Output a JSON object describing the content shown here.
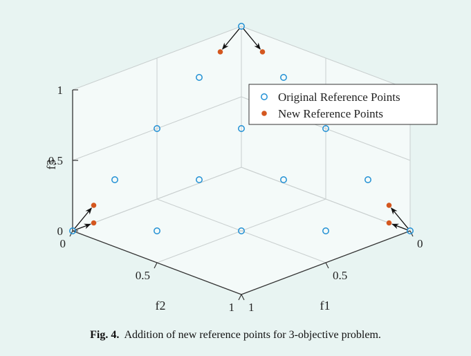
{
  "chart_data": {
    "type": "scatter",
    "projection": "3d",
    "grid": true,
    "legend_position": "top-right",
    "axes": {
      "f1": {
        "label": "f1",
        "range": [
          0,
          1
        ],
        "ticks": [
          "0",
          "0.5",
          "1"
        ]
      },
      "f2": {
        "label": "f2",
        "range": [
          0,
          1
        ],
        "ticks": [
          "0",
          "0.5",
          "1"
        ]
      },
      "f3": {
        "label": "f3",
        "range": [
          0,
          1
        ],
        "ticks": [
          "0",
          "0.5",
          "1"
        ]
      }
    },
    "series": [
      {
        "name": "Original Reference Points",
        "marker": "open-circle",
        "color": "#1f8fd4",
        "points": [
          [
            0,
            0,
            1
          ],
          [
            0,
            0.25,
            0.75
          ],
          [
            0.25,
            0,
            0.75
          ],
          [
            0,
            0.5,
            0.5
          ],
          [
            0.25,
            0.25,
            0.5
          ],
          [
            0.5,
            0,
            0.5
          ],
          [
            0,
            0.75,
            0.25
          ],
          [
            0.25,
            0.5,
            0.25
          ],
          [
            0.5,
            0.25,
            0.25
          ],
          [
            0.75,
            0,
            0.25
          ],
          [
            0,
            1,
            0
          ],
          [
            0.25,
            0.75,
            0
          ],
          [
            0.5,
            0.5,
            0
          ],
          [
            0.75,
            0.25,
            0
          ],
          [
            1,
            0,
            0
          ]
        ]
      },
      {
        "name": "New Reference Points",
        "marker": "filled-circle",
        "color": "#d4571f",
        "points": [
          [
            0,
            0.125,
            0.875
          ],
          [
            0.125,
            0,
            0.875
          ],
          [
            0,
            0.875,
            0.125
          ],
          [
            0,
            0.875,
            0
          ],
          [
            0.875,
            0,
            0.125
          ],
          [
            0.875,
            0,
            0
          ]
        ]
      }
    ],
    "arrows": [
      {
        "from": [
          0,
          0,
          1
        ],
        "to": [
          0,
          0.125,
          0.875
        ]
      },
      {
        "from": [
          0,
          0,
          1
        ],
        "to": [
          0.125,
          0,
          0.875
        ]
      },
      {
        "from": [
          0,
          1,
          0
        ],
        "to": [
          0,
          0.875,
          0.125
        ]
      },
      {
        "from": [
          0,
          1,
          0
        ],
        "to": [
          0,
          0.875,
          0
        ]
      },
      {
        "from": [
          1,
          0,
          0
        ],
        "to": [
          0.875,
          0,
          0.125
        ]
      },
      {
        "from": [
          1,
          0,
          0
        ],
        "to": [
          0.875,
          0,
          0
        ]
      }
    ]
  },
  "caption": {
    "label": "Fig. 4.",
    "text": "Addition of new reference points for 3-objective problem."
  }
}
